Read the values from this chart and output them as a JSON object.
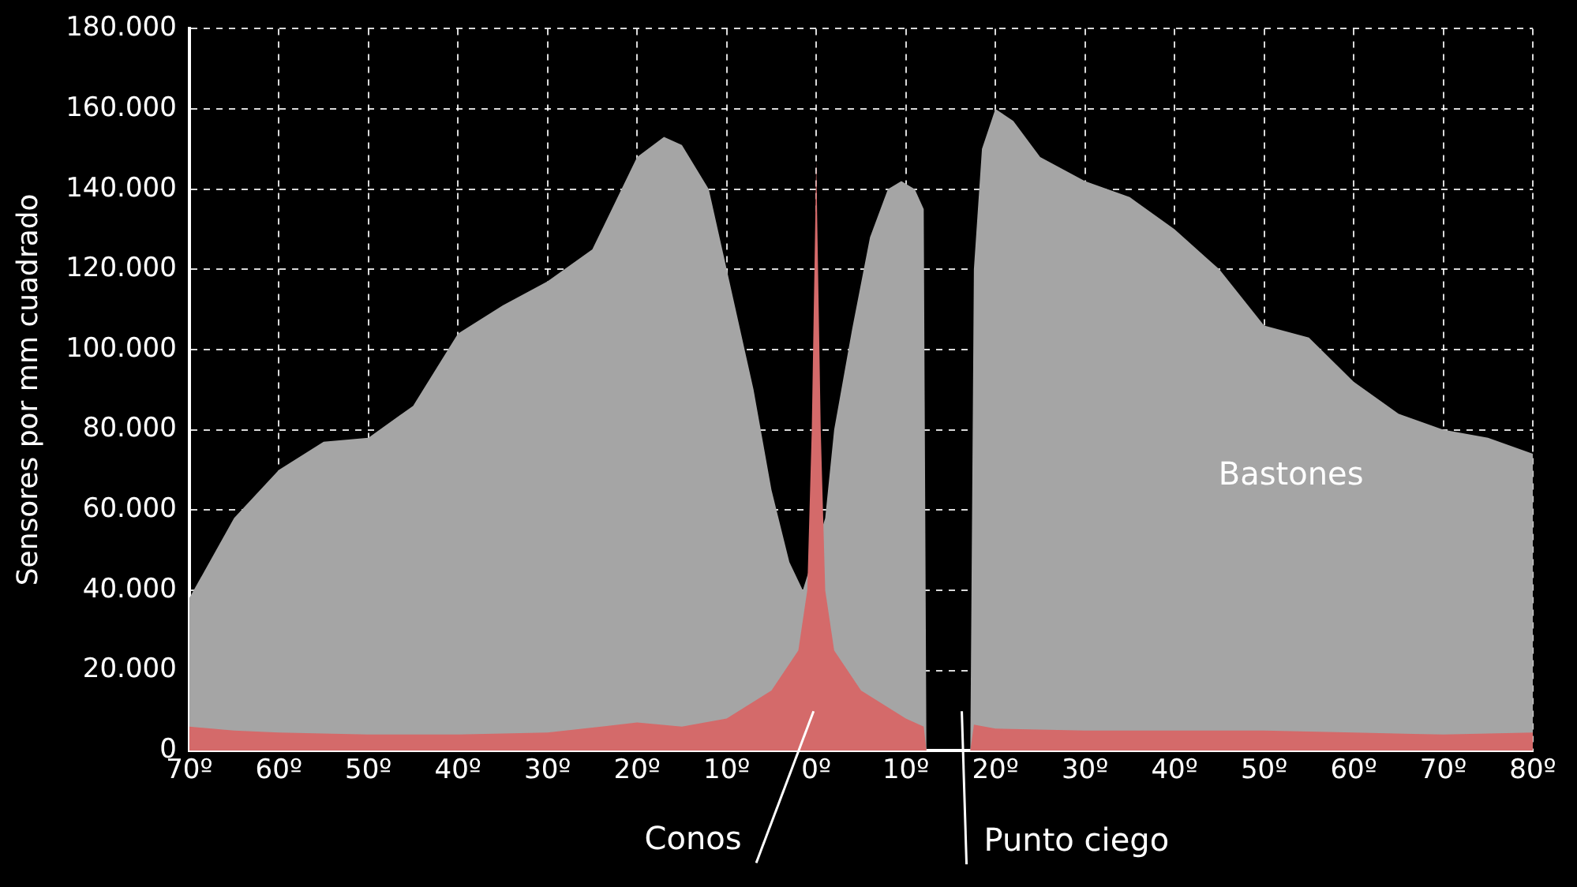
{
  "chart_data": {
    "type": "area",
    "ylabel": "Sensores por mm cuadrado",
    "xlim": [
      -70,
      80
    ],
    "xticks": [
      {
        "value": -70,
        "label": "70º"
      },
      {
        "value": -60,
        "label": "60º"
      },
      {
        "value": -50,
        "label": "50º"
      },
      {
        "value": -40,
        "label": "40º"
      },
      {
        "value": -30,
        "label": "30º"
      },
      {
        "value": -20,
        "label": "20º"
      },
      {
        "value": -10,
        "label": "10º"
      },
      {
        "value": 0,
        "label": "0º"
      },
      {
        "value": 10,
        "label": "10º"
      },
      {
        "value": 20,
        "label": "20º"
      },
      {
        "value": 30,
        "label": "30º"
      },
      {
        "value": 40,
        "label": "40º"
      },
      {
        "value": 50,
        "label": "50º"
      },
      {
        "value": 60,
        "label": "60º"
      },
      {
        "value": 70,
        "label": "70º"
      },
      {
        "value": 80,
        "label": "80º"
      }
    ],
    "ylim": [
      0,
      180000
    ],
    "yticks": [
      {
        "value": 0,
        "label": "0"
      },
      {
        "value": 20000,
        "label": "20.000"
      },
      {
        "value": 40000,
        "label": "40.000"
      },
      {
        "value": 60000,
        "label": "60.000"
      },
      {
        "value": 80000,
        "label": "80.000"
      },
      {
        "value": 100000,
        "label": "100.000"
      },
      {
        "value": 120000,
        "label": "120.000"
      },
      {
        "value": 140000,
        "label": "140.000"
      },
      {
        "value": 160000,
        "label": "160.000"
      },
      {
        "value": 180000,
        "label": "180.000"
      }
    ],
    "grid": true,
    "legend": false,
    "series": [
      {
        "name": "Bastones",
        "color": "#a5a5a5",
        "x": [
          -70,
          -65,
          -60,
          -55,
          -50,
          -45,
          -40,
          -35,
          -30,
          -25,
          -20,
          -17,
          -15,
          -12,
          -10,
          -7,
          -5,
          -3,
          -1.5,
          1,
          2,
          4,
          6,
          8,
          9.5,
          11,
          12,
          12.3,
          17.2,
          17.6,
          18.5,
          20,
          22,
          25,
          30,
          35,
          40,
          45,
          50,
          55,
          60,
          65,
          70,
          75,
          80
        ],
        "values": [
          38000,
          58000,
          70000,
          77000,
          78000,
          86000,
          104000,
          111000,
          117000,
          125000,
          148000,
          153000,
          151000,
          140000,
          120000,
          90000,
          65000,
          47000,
          40000,
          58000,
          80000,
          105000,
          128000,
          140000,
          142000,
          140000,
          135000,
          0,
          0,
          120000,
          150000,
          160000,
          157000,
          148000,
          142000,
          138000,
          130000,
          120000,
          106000,
          103000,
          92000,
          84000,
          80000,
          78000,
          74000
        ]
      },
      {
        "name": "Conos",
        "color": "#d46a6a",
        "x": [
          -70,
          -65,
          -60,
          -50,
          -40,
          -30,
          -20,
          -15,
          -10,
          -5,
          -2,
          -1,
          -0.5,
          0,
          0.5,
          1,
          2,
          5,
          10,
          12,
          12.3,
          17.2,
          17.6,
          20,
          30,
          40,
          50,
          60,
          70,
          80
        ],
        "values": [
          6000,
          5000,
          4500,
          4000,
          4000,
          4500,
          7000,
          6000,
          8000,
          15000,
          25000,
          40000,
          80000,
          147000,
          80000,
          40000,
          25000,
          15000,
          8000,
          6000,
          0,
          0,
          6500,
          5500,
          5000,
          5000,
          5000,
          4500,
          4000,
          4500
        ]
      }
    ],
    "annotations": [
      "Punto ciego"
    ]
  }
}
